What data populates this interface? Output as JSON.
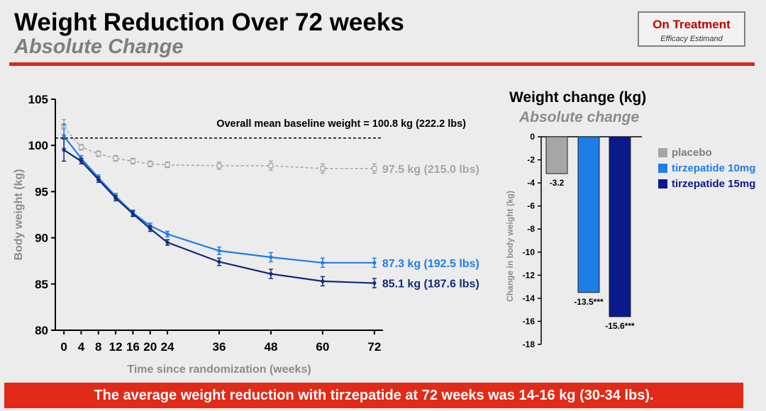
{
  "header": {
    "title": "Weight Reduction Over 72 weeks",
    "subtitle": "Absolute Change",
    "badge_title": "On Treatment",
    "badge_subtitle": "Efficacy Estimand",
    "badge_title_color": "#c00000",
    "rule_color": "#d42a1e"
  },
  "footer": {
    "banner_text": "The average weight reduction with tirzepatide at 72 weeks was 14-16 kg (30-34 lbs).",
    "banner_color": "#e12a18"
  },
  "chart_data": [
    {
      "type": "line",
      "title": "",
      "xlabel": "Time since randomization (weeks)",
      "ylabel": "Body weight (kg)",
      "xlim": [
        -2,
        74
      ],
      "ylim": [
        80,
        105
      ],
      "xticks": [
        0,
        4,
        8,
        12,
        16,
        20,
        24,
        36,
        48,
        60,
        72
      ],
      "yticks": [
        80,
        85,
        90,
        95,
        100,
        105
      ],
      "baseline": {
        "value": 100.8,
        "label": "Overall mean baseline weight = 100.8 kg (222.2 lbs)"
      },
      "grid": false,
      "series": [
        {
          "name": "placebo",
          "color": "#a6a6a6",
          "dashed": true,
          "x": [
            0,
            4,
            8,
            12,
            16,
            20,
            24,
            36,
            48,
            60,
            72
          ],
          "y": [
            102.0,
            99.8,
            99.1,
            98.6,
            98.3,
            98.0,
            97.9,
            97.8,
            97.8,
            97.5,
            97.5
          ],
          "err": [
            0.8,
            0.3,
            0.3,
            0.3,
            0.3,
            0.3,
            0.3,
            0.4,
            0.5,
            0.5,
            0.5
          ],
          "end_label": "97.5 kg (215.0 lbs)"
        },
        {
          "name": "tirzepatide 10mg",
          "color": "#1f7de8",
          "dashed": false,
          "x": [
            0,
            4,
            8,
            12,
            16,
            20,
            24,
            36,
            48,
            60,
            72
          ],
          "y": [
            101.0,
            98.6,
            96.5,
            94.5,
            92.7,
            91.3,
            90.4,
            88.6,
            87.9,
            87.3,
            87.3
          ],
          "err": [
            1.3,
            0.3,
            0.3,
            0.3,
            0.3,
            0.3,
            0.3,
            0.4,
            0.5,
            0.5,
            0.5
          ],
          "end_label": "87.3 kg (192.5 lbs)"
        },
        {
          "name": "tirzepatide 15mg",
          "color": "#142a7d",
          "dashed": false,
          "x": [
            0,
            4,
            8,
            12,
            16,
            20,
            24,
            36,
            48,
            60,
            72
          ],
          "y": [
            99.5,
            98.3,
            96.3,
            94.3,
            92.6,
            91.0,
            89.5,
            87.4,
            86.1,
            85.3,
            85.1
          ],
          "err": [
            1.2,
            0.3,
            0.3,
            0.3,
            0.3,
            0.3,
            0.3,
            0.4,
            0.5,
            0.5,
            0.5
          ],
          "end_label": "85.1 kg (187.6 lbs)"
        }
      ]
    },
    {
      "type": "bar",
      "title": "Weight change (kg)",
      "subtitle": "Absolute change",
      "xlabel": "",
      "ylabel": "Change in body weight (kg)",
      "ylim": [
        -18,
        0
      ],
      "yticks": [
        0,
        -2,
        -4,
        -6,
        -8,
        -10,
        -12,
        -14,
        -16,
        -18
      ],
      "categories": [
        "placebo",
        "tirzepatide 10mg",
        "tirzepatide 15mg"
      ],
      "values": [
        -3.2,
        -13.5,
        -15.6
      ],
      "value_labels": [
        "-3.2",
        "-13.5***",
        "-15.6***"
      ],
      "colors": [
        "#a6a6a6",
        "#1f7de8",
        "#0a1a8a"
      ],
      "legend": "right"
    }
  ]
}
